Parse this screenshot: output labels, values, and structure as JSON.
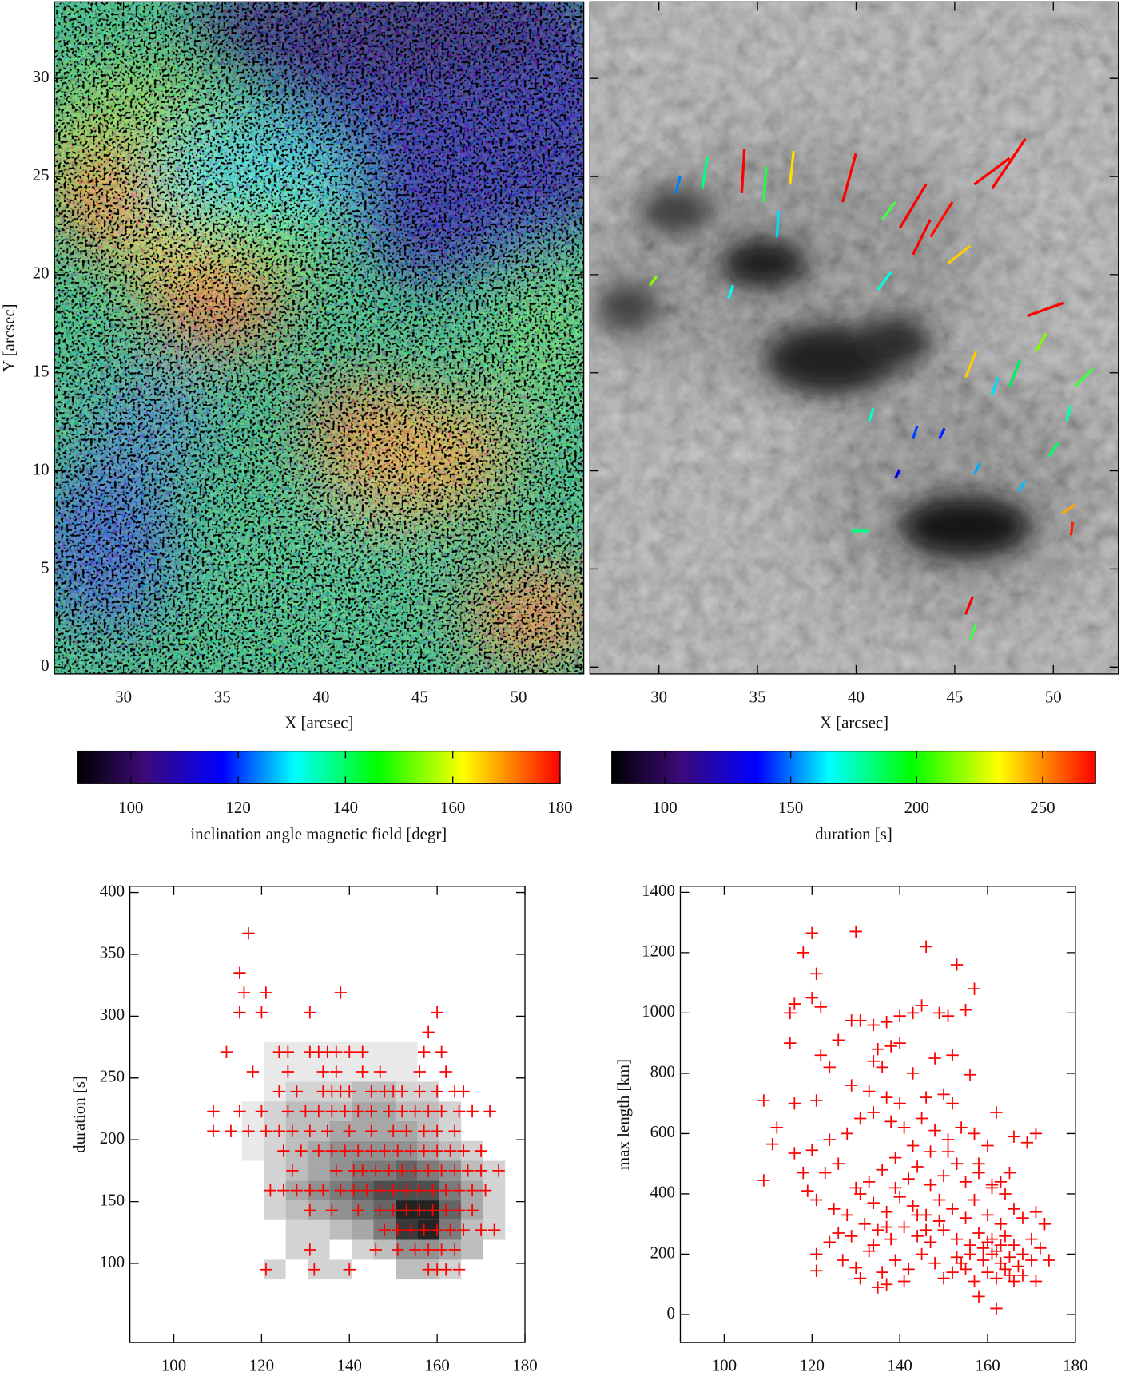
{
  "chart_data": [
    {
      "type": "image",
      "xlabel": "X [arcsec]",
      "ylabel": "Y [arcsec]",
      "xlim": [
        26.5,
        53.3
      ],
      "ylim": [
        -0.35,
        33.9
      ],
      "xticks": [
        30,
        35,
        40,
        45,
        50
      ],
      "yticks": [
        0,
        5,
        10,
        15,
        20,
        25,
        30
      ],
      "colorbar": {
        "label": "inclination angle magnetic field [degr]",
        "lim": [
          90,
          180
        ],
        "ticks": [
          100,
          120,
          140,
          160,
          180
        ],
        "colors": [
          "#000000",
          "#3c0a78",
          "#0000ff",
          "#00ffff",
          "#00ff00",
          "#ffff00",
          "#ff0000"
        ]
      }
    },
    {
      "type": "image",
      "xlabel": "X [arcsec]",
      "xlim": [
        26.5,
        53.3
      ],
      "ylim": [
        -0.35,
        33.9
      ],
      "xticks": [
        30,
        35,
        40,
        45,
        50
      ],
      "colorbar": {
        "label": "duration [s]",
        "lim": [
          79,
          271
        ],
        "ticks": [
          100,
          150,
          200,
          250
        ],
        "colors": [
          "#000000",
          "#3c0a78",
          "#0000ff",
          "#00ffff",
          "#00ff00",
          "#ffff00",
          "#ff0000"
        ]
      }
    },
    {
      "type": "scatter",
      "xlabel": "inclination angle magnetic field [degr]",
      "ylabel": "duration [s]",
      "xlim": [
        90,
        180
      ],
      "ylim": [
        36,
        405
      ],
      "xticks": [
        100,
        120,
        140,
        160,
        180
      ],
      "yticks": [
        100,
        150,
        200,
        250,
        300,
        350,
        400
      ],
      "color": "#ff0000",
      "x": [
        117,
        115,
        116,
        121,
        138,
        115,
        120,
        131,
        160,
        158,
        112,
        124,
        126,
        131,
        133,
        135,
        137,
        140,
        143,
        157,
        161,
        118,
        126,
        134,
        137,
        143,
        147,
        156,
        162,
        124,
        128,
        134,
        136,
        138,
        140,
        145,
        148,
        150,
        152,
        156,
        160,
        164,
        166,
        109,
        115,
        120,
        126,
        130,
        133,
        136,
        139,
        142,
        145,
        149,
        152,
        155,
        158,
        161,
        165,
        168,
        172,
        109,
        113,
        117,
        121,
        124,
        127,
        131,
        135,
        140,
        145,
        150,
        153,
        157,
        160,
        164,
        125,
        129,
        133,
        136,
        139,
        142,
        145,
        148,
        151,
        154,
        157,
        160,
        163,
        166,
        170,
        127,
        137,
        141,
        143,
        146,
        149,
        152,
        155,
        158,
        161,
        164,
        167,
        170,
        174,
        122,
        125,
        128,
        131,
        134,
        138,
        141,
        144,
        147,
        150,
        153,
        156,
        159,
        162,
        165,
        168,
        171,
        131,
        136,
        142,
        147,
        150,
        153,
        156,
        159,
        162,
        165,
        168,
        148,
        151,
        154,
        157,
        160,
        163,
        166,
        170,
        173,
        131,
        146,
        151,
        155,
        158,
        161,
        164,
        121,
        132,
        140,
        158,
        160,
        162,
        165
      ],
      "values": [
        367,
        335,
        319,
        319,
        319,
        303,
        303,
        303,
        303,
        287,
        271,
        271,
        271,
        271,
        271,
        271,
        271,
        271,
        271,
        271,
        271,
        255,
        255,
        255,
        255,
        255,
        255,
        255,
        255,
        239,
        239,
        239,
        239,
        239,
        239,
        239,
        239,
        239,
        239,
        239,
        239,
        239,
        239,
        223,
        223,
        223,
        223,
        223,
        223,
        223,
        223,
        223,
        223,
        223,
        223,
        223,
        223,
        223,
        223,
        223,
        223,
        207,
        207,
        207,
        207,
        207,
        207,
        207,
        207,
        207,
        207,
        207,
        207,
        207,
        207,
        207,
        191,
        191,
        191,
        191,
        191,
        191,
        191,
        191,
        191,
        191,
        191,
        191,
        191,
        191,
        191,
        175,
        175,
        175,
        175,
        175,
        175,
        175,
        175,
        175,
        175,
        175,
        175,
        175,
        175,
        159,
        159,
        159,
        159,
        159,
        159,
        159,
        159,
        159,
        159,
        159,
        159,
        159,
        159,
        159,
        159,
        159,
        143,
        143,
        143,
        143,
        143,
        143,
        143,
        143,
        143,
        143,
        143,
        127,
        127,
        127,
        127,
        127,
        127,
        127,
        127,
        127,
        111,
        111,
        111,
        111,
        111,
        111,
        111,
        95,
        95,
        95,
        95,
        95,
        95,
        95
      ],
      "density": {
        "xedges": [
          115.5,
          120.5,
          125.5,
          130.5,
          135.5,
          140.5,
          145.5,
          150.5,
          155.5,
          160.5,
          165.5,
          170.5,
          175.5
        ],
        "yedges": [
          87,
          103,
          119,
          135,
          151,
          167,
          183,
          199,
          215,
          231,
          247,
          263,
          279
        ],
        "counts": [
          [
            0,
            2,
            0,
            2,
            2,
            0,
            0,
            3,
            3,
            2,
            0,
            0
          ],
          [
            0,
            0,
            2,
            2,
            0,
            2,
            3,
            5,
            5,
            4,
            3,
            0
          ],
          [
            0,
            0,
            2,
            2,
            3,
            4,
            6,
            9,
            10,
            6,
            3,
            2
          ],
          [
            0,
            2,
            3,
            4,
            5,
            6,
            7,
            10,
            10,
            7,
            4,
            2
          ],
          [
            0,
            2,
            4,
            5,
            6,
            7,
            8,
            8,
            8,
            6,
            4,
            2
          ],
          [
            0,
            2,
            3,
            4,
            5,
            6,
            6,
            7,
            6,
            5,
            3,
            2
          ],
          [
            1,
            2,
            3,
            4,
            5,
            5,
            5,
            5,
            4,
            3,
            2,
            0
          ],
          [
            1,
            2,
            3,
            3,
            4,
            4,
            4,
            4,
            3,
            2,
            0,
            0
          ],
          [
            1,
            2,
            3,
            3,
            3,
            4,
            4,
            3,
            3,
            2,
            0,
            0
          ],
          [
            0,
            1,
            2,
            2,
            2,
            3,
            3,
            2,
            2,
            0,
            0,
            0
          ],
          [
            0,
            1,
            1,
            1,
            1,
            1,
            1,
            1,
            0,
            0,
            0,
            0
          ],
          [
            0,
            1,
            1,
            1,
            1,
            1,
            1,
            1,
            0,
            0,
            0,
            0
          ]
        ]
      }
    },
    {
      "type": "scatter",
      "xlabel": "inclination angle magnetic field [degr]",
      "ylabel": "max length [km]",
      "xlim": [
        90,
        180
      ],
      "ylim": [
        -93,
        1420
      ],
      "xticks": [
        100,
        120,
        140,
        160,
        180
      ],
      "yticks": [
        0,
        200,
        400,
        600,
        800,
        1000,
        1200,
        1400
      ],
      "color": "#ff0000",
      "x": [
        120,
        130,
        146,
        118,
        153,
        121,
        157,
        120,
        122,
        116,
        115,
        155,
        129,
        131,
        115,
        126,
        134,
        137,
        140,
        143,
        145,
        149,
        151,
        140,
        135,
        138,
        152,
        148,
        134,
        122,
        124,
        136,
        143,
        156,
        109,
        121,
        129,
        133,
        137,
        140,
        146,
        150,
        152,
        116,
        112,
        111,
        116,
        120,
        124,
        128,
        131,
        134,
        138,
        141,
        145,
        148,
        151,
        154,
        157,
        160,
        162,
        166,
        169,
        171,
        118,
        119,
        109,
        123,
        126,
        130,
        133,
        136,
        139,
        142,
        144,
        147,
        150,
        153,
        155,
        158,
        161,
        163,
        165,
        121,
        125,
        128,
        131,
        134,
        137,
        140,
        143,
        146,
        149,
        152,
        155,
        157,
        160,
        163,
        166,
        168,
        171,
        173,
        126,
        129,
        132,
        135,
        138,
        141,
        144,
        147,
        150,
        153,
        156,
        158,
        160,
        162,
        164,
        166,
        168,
        170,
        172,
        121,
        121,
        130,
        134,
        136,
        139,
        142,
        145,
        148,
        150,
        153,
        155,
        157,
        159,
        160,
        161,
        162,
        163,
        164,
        165,
        166,
        167,
        168,
        170,
        171,
        174,
        137,
        135,
        141,
        158,
        162,
        165,
        159,
        161,
        163,
        156,
        154,
        152,
        149,
        146,
        144,
        139,
        137,
        133,
        131,
        127,
        124,
        143,
        147,
        151,
        158,
        161,
        164
      ],
      "values": [
        1265,
        1270,
        1220,
        1200,
        1160,
        1130,
        1080,
        1050,
        1020,
        1030,
        1000,
        1010,
        975,
        975,
        900,
        910,
        960,
        970,
        990,
        1000,
        1025,
        1000,
        990,
        900,
        880,
        890,
        860,
        850,
        840,
        860,
        820,
        820,
        800,
        795,
        710,
        710,
        760,
        740,
        720,
        700,
        720,
        730,
        700,
        700,
        620,
        565,
        535,
        545,
        580,
        600,
        650,
        670,
        640,
        620,
        650,
        610,
        580,
        620,
        600,
        560,
        670,
        590,
        570,
        600,
        470,
        410,
        445,
        470,
        500,
        420,
        440,
        480,
        520,
        450,
        490,
        430,
        460,
        500,
        440,
        470,
        420,
        440,
        470,
        380,
        350,
        330,
        400,
        370,
        340,
        390,
        360,
        330,
        380,
        350,
        320,
        380,
        330,
        300,
        350,
        320,
        340,
        300,
        270,
        260,
        300,
        280,
        250,
        290,
        260,
        240,
        280,
        250,
        230,
        270,
        240,
        210,
        260,
        230,
        200,
        250,
        220,
        200,
        145,
        155,
        230,
        140,
        180,
        150,
        200,
        170,
        120,
        190,
        150,
        110,
        180,
        140,
        200,
        120,
        170,
        150,
        190,
        110,
        160,
        130,
        180,
        110,
        180,
        100,
        90,
        110,
        60,
        20,
        130,
        220,
        250,
        230,
        200,
        170,
        140,
        310,
        280,
        330,
        420,
        290,
        210,
        120,
        180,
        240,
        560,
        540,
        540,
        500,
        430,
        400
      ]
    }
  ]
}
